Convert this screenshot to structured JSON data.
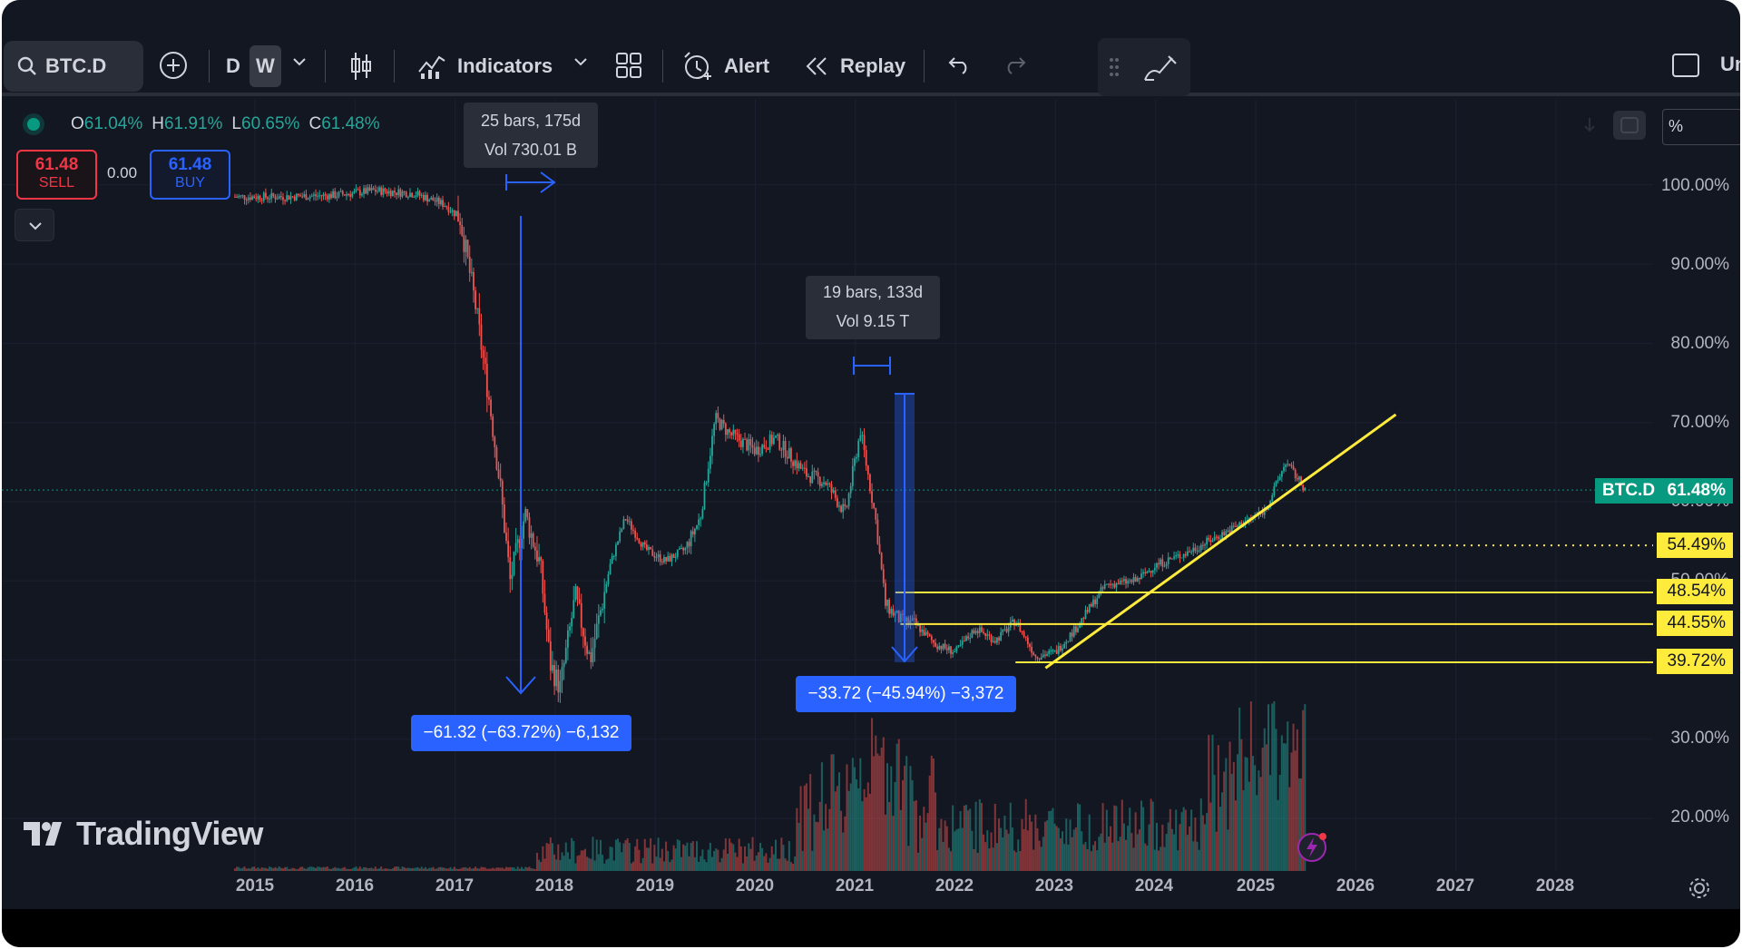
{
  "toolbar": {
    "symbol": "BTC.D",
    "timeframes": [
      "D",
      "W"
    ],
    "active_timeframe": "W",
    "indicators_label": "Indicators",
    "alert_label": "Alert",
    "replay_label": "Replay",
    "right_cut_label": "Un"
  },
  "ohlc": {
    "o_key": "O",
    "o": "61.04%",
    "h_key": "H",
    "h": "61.91%",
    "l_key": "L",
    "l": "60.65%",
    "c_key": "C",
    "c": "61.48%"
  },
  "trade": {
    "sell_price": "61.48",
    "sell_label": "SELL",
    "spread": "0.00",
    "buy_price": "61.48",
    "buy_label": "BUY"
  },
  "measurements": {
    "range1_line1": "25 bars, 175d",
    "range1_line2": "Vol 730.01 B",
    "range2_line1": "19 bars, 133d",
    "range2_line2": "Vol 9.15 T",
    "drop1": "−61.32 (−63.72%) −6,132",
    "drop2": "−33.72 (−45.94%) −3,372"
  },
  "scale_mode": "%",
  "price_axis": [
    "100.00%",
    "90.00%",
    "80.00%",
    "70.00%",
    "60.00%",
    "50.00%",
    "30.00%",
    "20.00%"
  ],
  "price_tags": [
    "54.49%",
    "48.54%",
    "44.55%",
    "39.72%"
  ],
  "symbol_tag": "BTC.D",
  "last_price": "61.48%",
  "time_axis": [
    "2015",
    "2016",
    "2017",
    "2018",
    "2019",
    "2020",
    "2021",
    "2022",
    "2023",
    "2024",
    "2025",
    "2026",
    "2027",
    "2028"
  ],
  "brand": "TradingView",
  "colors": {
    "up": "#26a69a",
    "down": "#ef5350",
    "accent": "#2962ff",
    "trendline": "#ffeb3b",
    "background": "#131722"
  },
  "chart_data": {
    "type": "candlestick",
    "xlabel": "",
    "ylabel": "",
    "ylim": [
      15,
      104
    ],
    "horizontal_levels": [
      54.49,
      48.54,
      44.55,
      39.72
    ],
    "trendline": {
      "from": [
        2022.9,
        39.0
      ],
      "to": [
        2026.4,
        71.0
      ]
    },
    "close_path": {
      "x": [
        2014.8,
        2015.3,
        2015.8,
        2016.2,
        2016.6,
        2016.9,
        2017.05,
        2017.2,
        2017.35,
        2017.45,
        2017.55,
        2017.7,
        2017.85,
        2017.95,
        2018.05,
        2018.2,
        2018.35,
        2018.55,
        2018.7,
        2018.9,
        2019.1,
        2019.3,
        2019.45,
        2019.6,
        2019.75,
        2020.0,
        2020.2,
        2020.5,
        2020.7,
        2020.9,
        2021.05,
        2021.2,
        2021.3,
        2021.45,
        2021.6,
        2021.8,
        2022.0,
        2022.2,
        2022.4,
        2022.6,
        2022.8,
        2023.0,
        2023.2,
        2023.5,
        2023.8,
        2024.0,
        2024.3,
        2024.6,
        2024.9,
        2025.1,
        2025.3,
        2025.5
      ],
      "y": [
        98.5,
        98.5,
        98.7,
        99.3,
        98.9,
        97.5,
        95.8,
        85.0,
        72.0,
        62.0,
        50.0,
        58.5,
        52.0,
        39.5,
        36.5,
        48.0,
        40.0,
        52.0,
        58.0,
        54.0,
        52.5,
        54.0,
        58.0,
        70.5,
        68.5,
        66.5,
        68.0,
        63.5,
        62.5,
        58.5,
        69.0,
        58.0,
        47.0,
        45.0,
        44.5,
        42.0,
        41.0,
        44.0,
        42.5,
        45.0,
        40.5,
        41.0,
        44.0,
        49.5,
        50.0,
        52.0,
        53.5,
        55.5,
        57.5,
        59.0,
        65.0,
        61.5
      ]
    }
  }
}
